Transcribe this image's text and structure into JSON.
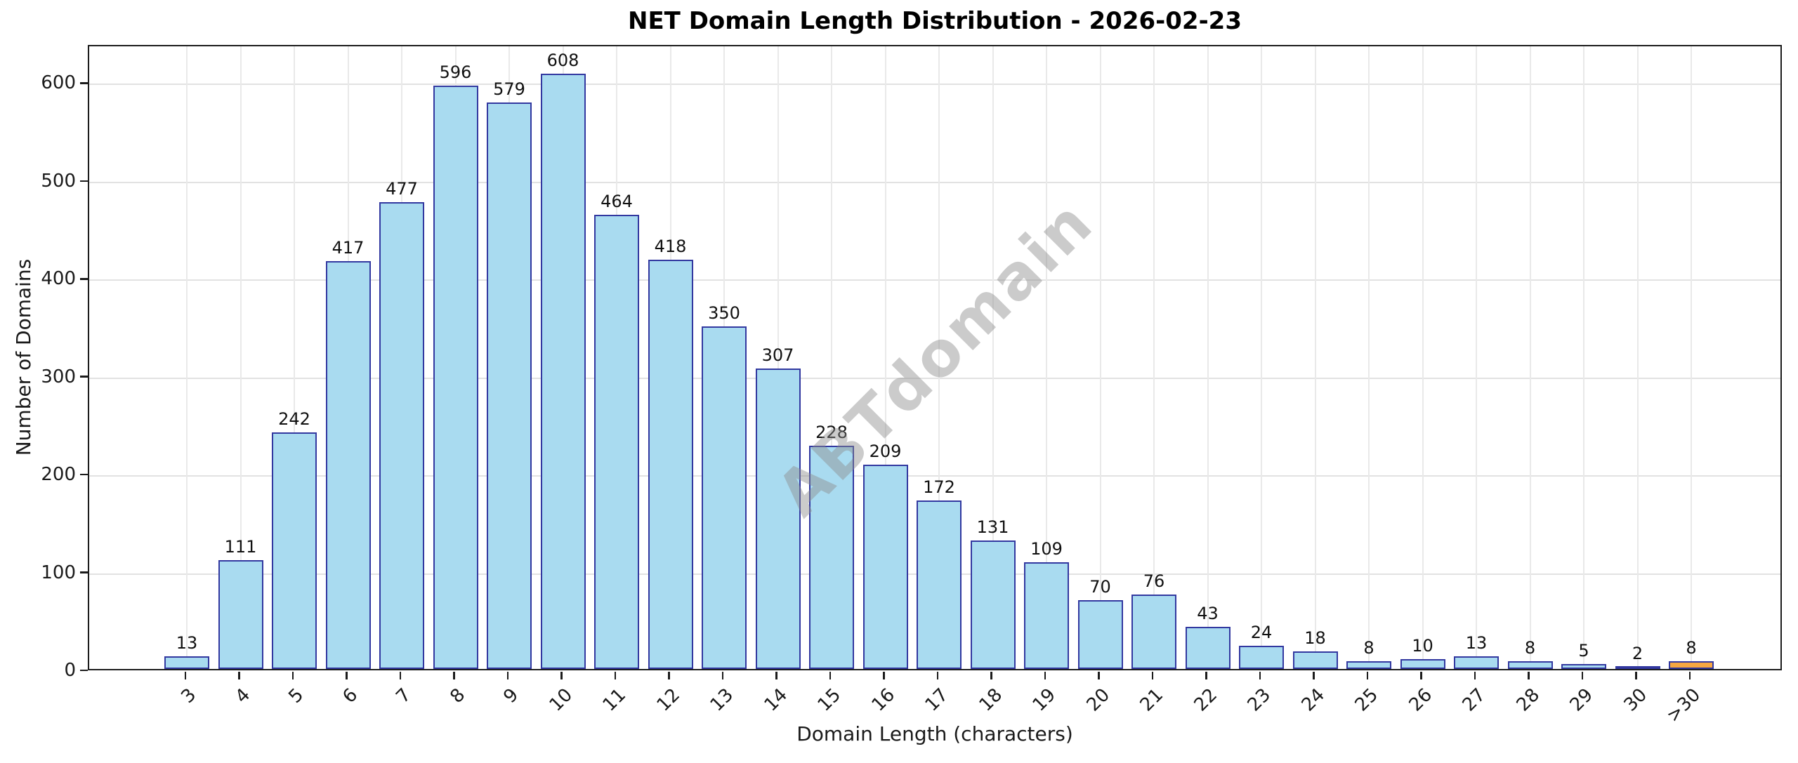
{
  "chart_data": {
    "type": "bar",
    "title": "NET Domain Length Distribution - 2026-02-23",
    "xlabel": "Domain Length (characters)",
    "ylabel": "Number of Domains",
    "watermark": "ABTdomain",
    "categories": [
      "3",
      "4",
      "5",
      "6",
      "7",
      "8",
      "9",
      "10",
      "11",
      "12",
      "13",
      "14",
      "15",
      "16",
      "17",
      "18",
      "19",
      "20",
      "21",
      "22",
      "23",
      "24",
      "25",
      "26",
      "27",
      "28",
      "29",
      "30",
      ">30"
    ],
    "values": [
      13,
      111,
      242,
      417,
      477,
      596,
      579,
      608,
      464,
      418,
      350,
      307,
      228,
      209,
      172,
      131,
      109,
      70,
      76,
      43,
      24,
      18,
      8,
      10,
      13,
      8,
      5,
      2,
      8
    ],
    "highlight_category": ">30",
    "yticks": [
      0,
      100,
      200,
      300,
      400,
      500,
      600
    ],
    "ylim": [
      0,
      639
    ],
    "grid": "both",
    "legend": "none",
    "colors": {
      "bar_fill": "#a9dbf0",
      "bar_edge": "#3238a0",
      "highlight_fill": "#f6a742",
      "watermark": "#8c8c8c",
      "grid": "#e2e2e2",
      "spine": "#1c1c1c"
    }
  }
}
